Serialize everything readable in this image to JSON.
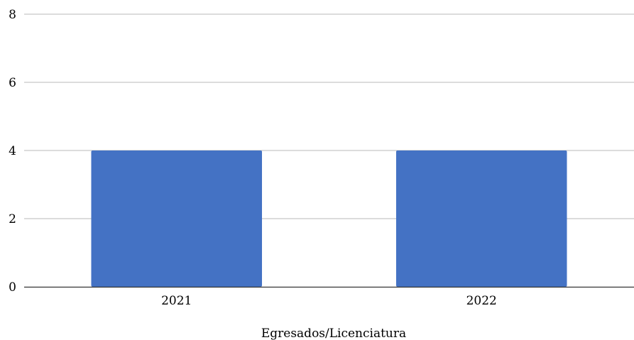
{
  "chart_data": {
    "type": "bar",
    "categories": [
      "2021",
      "2022"
    ],
    "values": [
      4,
      4
    ],
    "title": "",
    "xlabel": "Egresados/Licenciatura",
    "ylabel": "",
    "ylim": [
      0,
      8
    ],
    "yticks": [
      0,
      2,
      4,
      6,
      8
    ],
    "grid": true,
    "legend": "none",
    "colors": {
      "bar": "#4472c4",
      "grid": "#c8c8c8",
      "axis": "#333333"
    }
  }
}
